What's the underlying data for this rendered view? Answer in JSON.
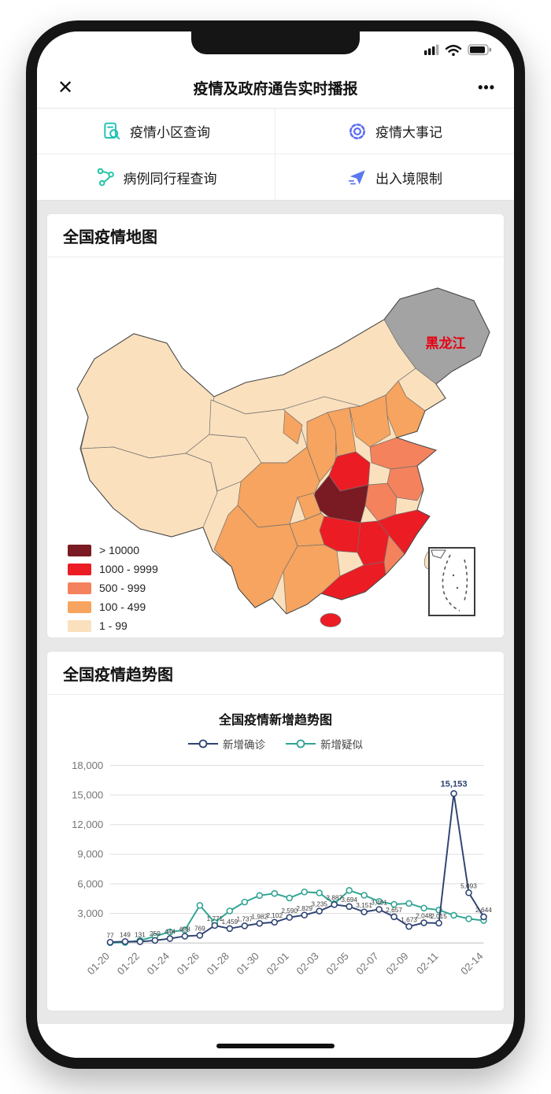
{
  "header": {
    "title": "疫情及政府通告实时播报",
    "close_glyph": "✕",
    "more_glyph": "•••"
  },
  "quick_menu": {
    "items": [
      {
        "label": "疫情小区查询",
        "icon": "community-search-icon",
        "color": "#1fc2b3"
      },
      {
        "label": "疫情大事记",
        "icon": "events-gear-icon",
        "color": "#5a6cf3"
      },
      {
        "label": "病例同行程查询",
        "icon": "route-share-icon",
        "color": "#1ec5a5"
      },
      {
        "label": "出入境限制",
        "icon": "travel-plane-icon",
        "color": "#5a78f0"
      }
    ]
  },
  "map_card": {
    "title": "全国疫情地图",
    "region_label": "黑龙江",
    "region_label_color": "#e60012",
    "no_data_color": "#a3a3a3",
    "legend": [
      {
        "label": "> 10000",
        "color": "#7a1a22"
      },
      {
        "label": "1000 - 9999",
        "color": "#ec1c24"
      },
      {
        "label": "500 - 999",
        "color": "#f4825d"
      },
      {
        "label": "100 - 499",
        "color": "#f6a45f"
      },
      {
        "label": "1 - 99",
        "color": "#fbe0bd"
      }
    ]
  },
  "trend_card": {
    "title": "全国疫情趋势图",
    "chart_data": {
      "type": "line",
      "title": "全国疫情新增趋势图",
      "x": [
        "01-20",
        "01-21",
        "01-22",
        "01-23",
        "01-24",
        "01-25",
        "01-26",
        "01-27",
        "01-28",
        "01-29",
        "01-30",
        "01-31",
        "02-01",
        "02-02",
        "02-03",
        "02-04",
        "02-05",
        "02-06",
        "02-07",
        "02-08",
        "02-09",
        "02-10",
        "02-11",
        "02-12",
        "02-13",
        "02-14"
      ],
      "tick_indices": [
        0,
        2,
        4,
        6,
        8,
        10,
        12,
        14,
        16,
        18,
        20,
        22,
        25
      ],
      "x_tick_labels": [
        "01-20",
        "01-22",
        "01-24",
        "01-26",
        "01-28",
        "01-30",
        "02-01",
        "02-03",
        "02-05",
        "02-07",
        "02-09",
        "02-11",
        "02-14"
      ],
      "ylim": [
        0,
        18000
      ],
      "y_step": 3000,
      "grid": true,
      "legend_position": "top",
      "series": [
        {
          "name": "新增确诊",
          "color": "#2e4372",
          "show_labels": true,
          "values": [
            77,
            149,
            131,
            259,
            444,
            688,
            769,
            1771,
            1459,
            1737,
            1982,
            2102,
            2590,
            2829,
            3235,
            3887,
            3694,
            3151,
            3401,
            2657,
            1673,
            2048,
            2015,
            15153,
            5093,
            2644
          ]
        },
        {
          "name": "新增疑似",
          "color": "#2fa493",
          "show_labels": false,
          "values": [
            27,
            53,
            257,
            680,
            1118,
            1309,
            3806,
            2077,
            3248,
            4148,
            4812,
            5019,
            4562,
            5173,
            5072,
            3971,
            5328,
            4833,
            4214,
            3916,
            4008,
            3536,
            3342,
            2807,
            2450,
            2277
          ]
        }
      ]
    }
  }
}
